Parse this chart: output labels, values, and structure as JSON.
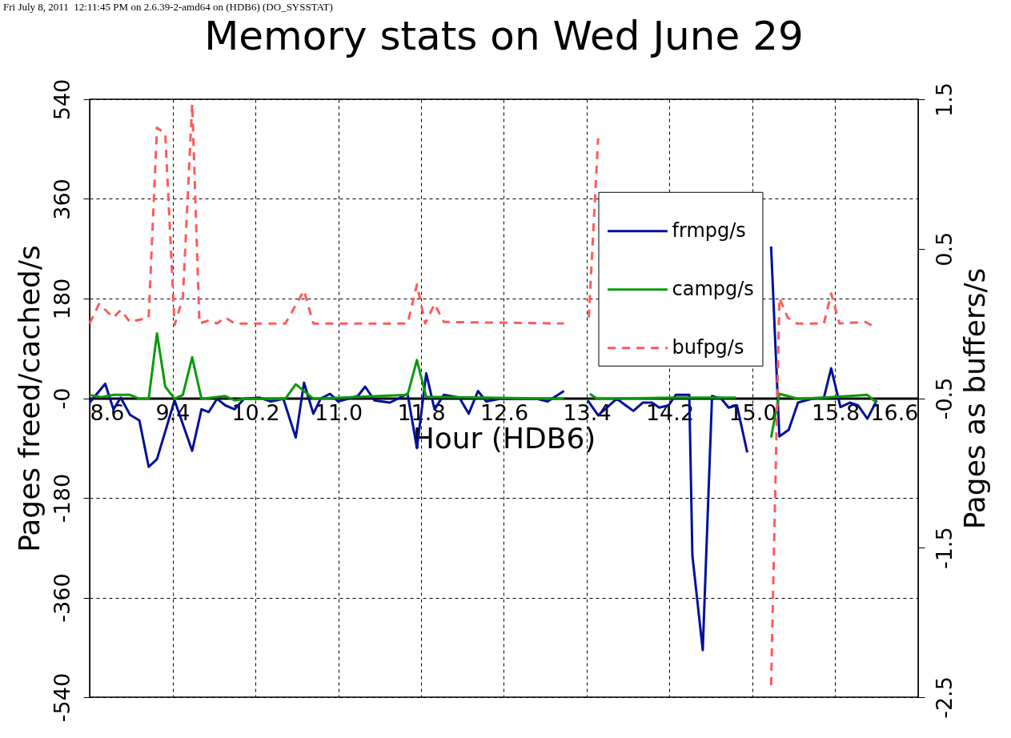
{
  "chart_data": {
    "type": "line",
    "title": "Memory stats on Wed June 29",
    "xlabel": "Hour (HDB6)",
    "ylabel": "Pages freed/cached/s",
    "y2label": "Pages as buffers/s",
    "annotations": [
      "Fri July 8, 2011  12:11:45 PM on 2.6.39-2-amd64 on (HDB6) (DO_SYSSTAT)"
    ],
    "xlim": [
      8.6,
      16.6
    ],
    "xticks": [
      8.6,
      9.4,
      10.2,
      {
        "value": 11,
        "label": "11.0"
      },
      11.8,
      12.6,
      13.4,
      14.2,
      {
        "value": 15,
        "label": "15.0"
      },
      15.8,
      16.6
    ],
    "ylim": [
      -540,
      540
    ],
    "yticks": [
      -540,
      -360,
      -180,
      {
        "value": 0,
        "label": "-0"
      },
      180,
      360,
      540
    ],
    "y2lim": [
      -2.5,
      1.5
    ],
    "y2ticks": [
      -2.5,
      -1.5,
      -0.5,
      0.5,
      1.5
    ],
    "grid": true,
    "legend": "right",
    "series": [
      {
        "name": "frmpg/s",
        "color": "#00109a",
        "line_style": "solid",
        "x": [
          8.6,
          8.75,
          8.83,
          8.9,
          8.99,
          9.08,
          9.17,
          9.25,
          9.42,
          9.59,
          9.68,
          9.75,
          9.83,
          9.91,
          10.0,
          10.09,
          10.24,
          10.35,
          10.47,
          10.59,
          10.67,
          10.76,
          10.83,
          10.92,
          11.0,
          11.19,
          11.26,
          11.35,
          11.5,
          11.67,
          11.76,
          11.85,
          11.93,
          12.02,
          12.17,
          12.26,
          12.35,
          12.43,
          12.56,
          12.92,
          13.02,
          13.18,
          13.3,
          13.41,
          13.51,
          13.69,
          13.85,
          13.94,
          14.03,
          14.1,
          14.19,
          14.26,
          14.39,
          14.42,
          14.52,
          14.61,
          14.7,
          14.77,
          14.85,
          14.95,
          15.05,
          15.18,
          15.26,
          15.35,
          15.44,
          15.57,
          15.69,
          15.76,
          15.85,
          15.94,
          16.02,
          16.11,
          16.2
        ],
        "values": [
          -8,
          26,
          -20,
          1,
          -30,
          -40,
          -124,
          -110,
          -4,
          -95,
          -20,
          -25,
          -1,
          -13,
          -20,
          -1,
          1,
          -6,
          -1,
          -71,
          28,
          -28,
          -1,
          8,
          -6,
          4,
          21,
          -4,
          -8,
          8,
          -90,
          45,
          -20,
          6,
          1,
          -28,
          13,
          -6,
          -1,
          -1,
          -6,
          13,
          null,
          -4,
          -31,
          -1,
          -23,
          -8,
          -8,
          -17,
          -13,
          6,
          6,
          -284,
          -455,
          4,
          -1,
          -17,
          -13,
          -98,
          null,
          274,
          -69,
          -57,
          -8,
          -1,
          1,
          54,
          -16,
          -8,
          -13,
          -37,
          -4
        ]
      },
      {
        "name": "campg/s",
        "color": "#0a9a0a",
        "line_style": "solid",
        "x": [
          8.6,
          8.71,
          8.83,
          8.99,
          9.08,
          9.17,
          9.25,
          9.33,
          9.42,
          9.5,
          9.59,
          9.68,
          9.91,
          10.0,
          10.09,
          10.49,
          10.59,
          10.76,
          11.67,
          11.76,
          11.85,
          12.02,
          13.18,
          13.3,
          13.43,
          13.5,
          14.26,
          14.84,
          15.0,
          15.18,
          15.26,
          15.44,
          15.69,
          16.11,
          16.2
        ],
        "values": [
          6,
          2,
          6,
          6,
          -1,
          -1,
          117,
          21,
          -1,
          6,
          74,
          -1,
          4,
          -4,
          -1,
          -1,
          25,
          -1,
          6,
          69,
          2,
          2,
          -1,
          null,
          8,
          -1,
          1,
          1,
          null,
          -71,
          8,
          -1,
          1,
          6,
          -8
        ]
      },
      {
        "name": "bufpg/s",
        "color": "#ff5a5a",
        "line_style": "dashed",
        "axis": "y2",
        "x": [
          8.6,
          8.69,
          8.83,
          8.9,
          8.99,
          9.17,
          9.25,
          9.33,
          9.42,
          9.5,
          9.59,
          9.66,
          9.75,
          9.83,
          9.91,
          10.0,
          10.49,
          10.67,
          10.76,
          11.67,
          11.76,
          11.84,
          11.93,
          12.02,
          13.18,
          13.3,
          13.42,
          13.51,
          14.3,
          15.18,
          15.26,
          15.34,
          15.43,
          15.69,
          15.76,
          15.84,
          16.09,
          16.17
        ],
        "values": [
          0.0,
          0.13,
          0.04,
          0.09,
          0.01,
          0.04,
          1.31,
          1.27,
          -0.01,
          0.17,
          1.47,
          0.0,
          0.02,
          0.0,
          0.04,
          0.0,
          0.0,
          0.22,
          0.0,
          0.0,
          0.26,
          0.0,
          0.13,
          0.01,
          0.0,
          null,
          0.04,
          1.24,
          null,
          -2.42,
          0.17,
          0.04,
          0.0,
          0.0,
          0.2,
          0.0,
          0.01,
          -0.02
        ]
      }
    ]
  }
}
